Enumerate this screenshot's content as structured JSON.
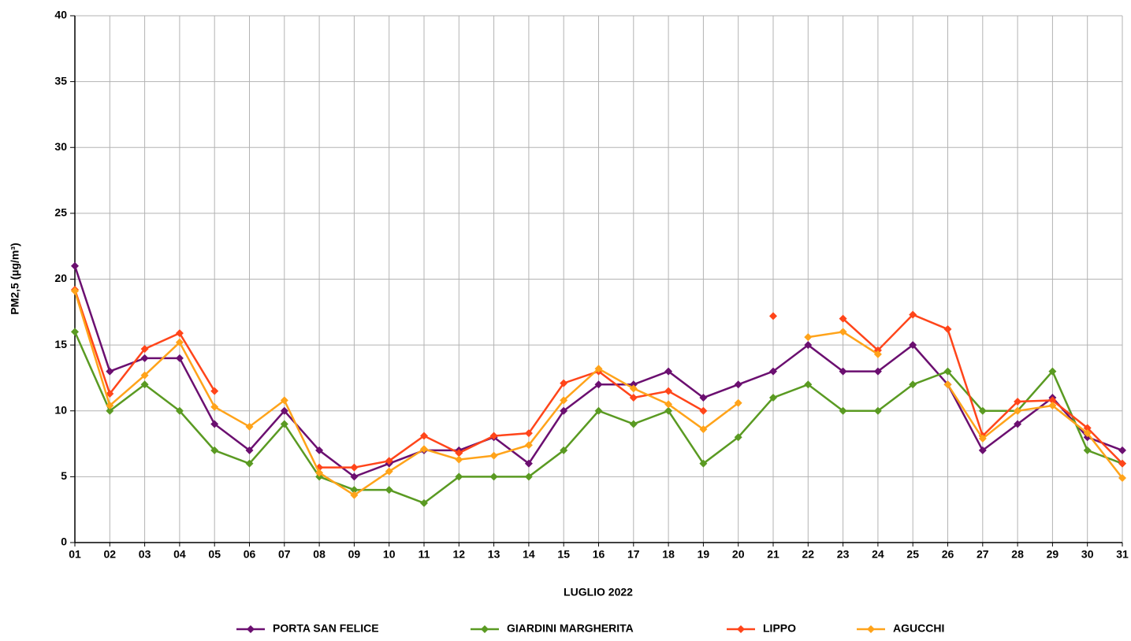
{
  "chart_data": {
    "type": "line",
    "y_label": "PM2,5 (µg/m³)",
    "x_label": "LUGLIO 2022",
    "categories": [
      "01",
      "02",
      "03",
      "04",
      "05",
      "06",
      "07",
      "08",
      "09",
      "10",
      "11",
      "12",
      "13",
      "14",
      "15",
      "16",
      "17",
      "18",
      "19",
      "20",
      "21",
      "22",
      "23",
      "24",
      "25",
      "26",
      "27",
      "28",
      "29",
      "30",
      "31"
    ],
    "series": [
      {
        "name": "PORTA SAN FELICE",
        "color": "#6b0f70",
        "values": [
          21,
          13,
          14,
          14,
          9,
          7,
          10,
          7,
          5,
          6,
          7,
          7,
          8,
          6,
          10,
          12,
          12,
          13,
          11,
          12,
          13,
          15,
          13,
          13,
          15,
          12,
          7,
          9,
          11,
          8,
          7
        ]
      },
      {
        "name": "GIARDINI MARGHERITA",
        "color": "#5a9a22",
        "values": [
          16,
          10,
          12,
          10,
          7,
          6,
          9,
          5,
          4,
          4,
          3,
          5,
          5,
          5,
          7,
          10,
          9,
          10,
          6,
          8,
          11,
          12,
          10,
          10,
          12,
          13,
          10,
          10,
          13,
          7,
          6
        ]
      },
      {
        "name": "LIPPO",
        "color": "#ff451a",
        "values": [
          19.2,
          11.3,
          14.7,
          15.9,
          11.5,
          null,
          null,
          5.7,
          5.7,
          6.2,
          8.1,
          6.8,
          8.1,
          8.3,
          12.1,
          13.0,
          11.0,
          11.5,
          10.0,
          null,
          17.2,
          null,
          17.0,
          14.6,
          17.3,
          16.2,
          8.1,
          10.7,
          10.8,
          8.7,
          6.0
        ]
      },
      {
        "name": "AGUCCHI",
        "color": "#ffa31a",
        "values": [
          19.1,
          10.4,
          12.7,
          15.2,
          10.3,
          8.8,
          10.8,
          5.3,
          3.6,
          5.4,
          7.1,
          6.3,
          6.6,
          7.4,
          10.8,
          13.2,
          11.7,
          10.5,
          8.6,
          10.6,
          null,
          15.6,
          16.0,
          14.3,
          null,
          12.0,
          7.9,
          10.0,
          10.4,
          8.3,
          4.9
        ]
      }
    ],
    "ylim": [
      0,
      40
    ],
    "yticks": [
      0,
      5,
      10,
      15,
      20,
      25,
      30,
      35,
      40
    ],
    "grid": true,
    "legend": "bottom"
  }
}
